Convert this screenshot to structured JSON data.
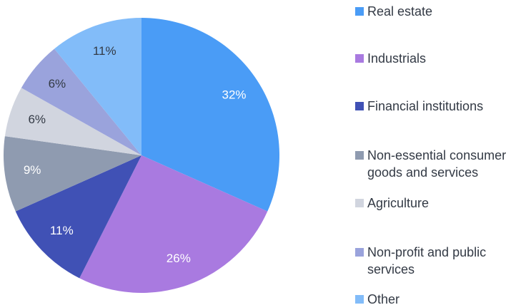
{
  "chart_data": {
    "type": "pie",
    "categories": [
      "Real estate",
      "Industrials",
      "Financial institutions",
      "Non-essential consumer goods and services",
      "Agriculture",
      "Non-profit and public services",
      "Other"
    ],
    "values": [
      32,
      26,
      11,
      9,
      6,
      6,
      11
    ],
    "value_labels": [
      "32%",
      "26%",
      "11%",
      "9%",
      "6%",
      "6%",
      "11%"
    ],
    "colors": [
      "#4a9cf6",
      "#a97ae0",
      "#4051b5",
      "#8f9bb0",
      "#d1d5df",
      "#9aa3dc",
      "#82bcf9"
    ],
    "label_colors": [
      "#ffffff",
      "#ffffff",
      "#ffffff",
      "#ffffff",
      "#333a45",
      "#333a45",
      "#333a45"
    ],
    "legend": "right"
  }
}
